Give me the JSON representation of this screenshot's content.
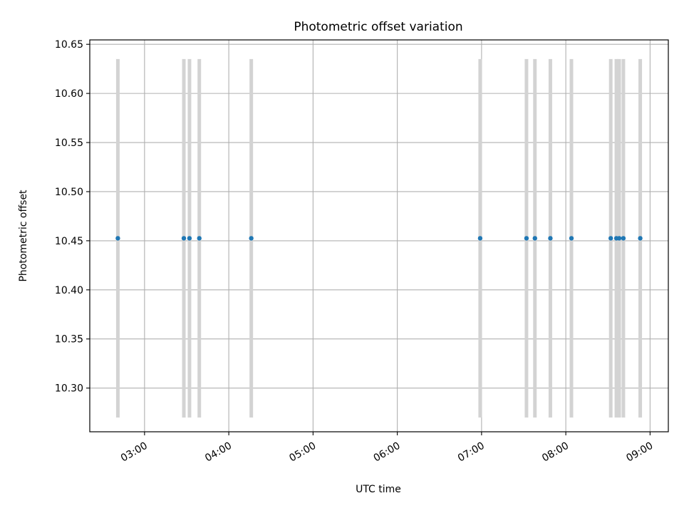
{
  "chart_data": {
    "type": "scatter",
    "title": "Photometric offset variation",
    "xlabel": "UTC time",
    "ylabel": "Photometric offset",
    "xlim": [
      "02:21",
      "09:13"
    ],
    "ylim": [
      10.2555,
      10.6545
    ],
    "x_ticks": [
      "03:00",
      "04:00",
      "05:00",
      "06:00",
      "07:00",
      "08:00",
      "09:00"
    ],
    "y_ticks": [
      "10.30",
      "10.35",
      "10.40",
      "10.45",
      "10.50",
      "10.55",
      "10.60",
      "10.65"
    ],
    "grid": true,
    "series": [
      {
        "values": [
          {
            "x": "02:41",
            "y": 10.4525
          },
          {
            "x": "03:28",
            "y": 10.4525
          },
          {
            "x": "03:32",
            "y": 10.4525
          },
          {
            "x": "03:39",
            "y": 10.4525
          },
          {
            "x": "04:16",
            "y": 10.4525
          },
          {
            "x": "06:59",
            "y": 10.4525
          },
          {
            "x": "07:32",
            "y": 10.4525
          },
          {
            "x": "07:38",
            "y": 10.4525
          },
          {
            "x": "07:49",
            "y": 10.4525
          },
          {
            "x": "08:04",
            "y": 10.4525
          },
          {
            "x": "08:32",
            "y": 10.4525
          },
          {
            "x": "08:36",
            "y": 10.4525
          },
          {
            "x": "08:38",
            "y": 10.4525
          },
          {
            "x": "08:41",
            "y": 10.4525
          },
          {
            "x": "08:53",
            "y": 10.4525
          }
        ]
      }
    ],
    "error_bars": {
      "low": 10.27,
      "high": 10.635
    },
    "colors": {
      "points": "#1f77b4",
      "error_bars": "#d3d3d3",
      "grid": "#b0b0b0",
      "axes": "#000000"
    }
  }
}
